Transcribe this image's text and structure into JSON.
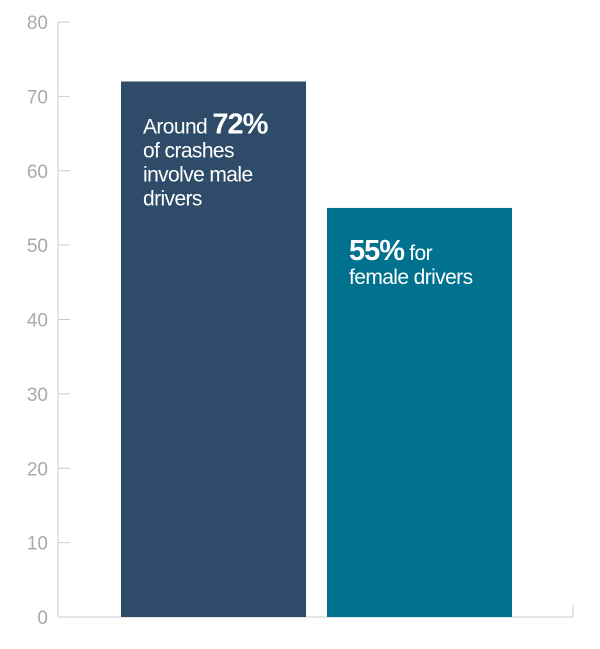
{
  "chart_data": {
    "type": "bar",
    "categories": [
      null,
      null
    ],
    "values": [
      72,
      55
    ],
    "value_labels": [
      "72%",
      "55%"
    ],
    "colors": [
      "#2e4c69",
      "#00718f"
    ],
    "annotations": [
      {
        "before": "Around",
        "lines": [
          "of crashes",
          "involve male",
          "drivers"
        ]
      },
      {
        "after": "for",
        "lines": [
          "female drivers"
        ]
      }
    ],
    "ylim": [
      0,
      80
    ],
    "yticks": [
      0,
      10,
      20,
      30,
      40,
      50,
      60,
      70,
      80
    ]
  }
}
